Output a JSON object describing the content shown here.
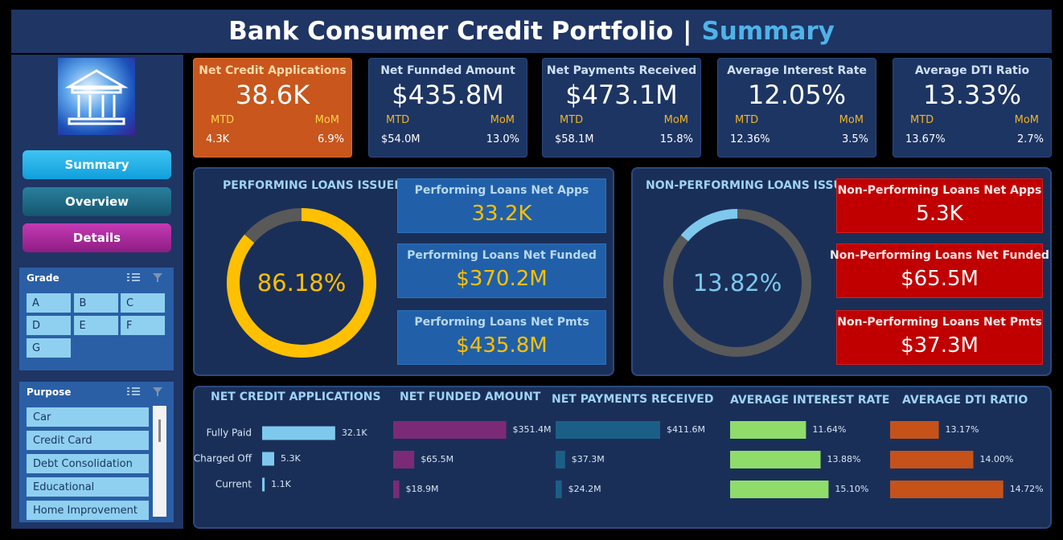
{
  "header": {
    "title": "Bank Consumer Credit Portfolio",
    "separator": "|",
    "subtitle": "Summary"
  },
  "nav": [
    "Summary",
    "Overview",
    "Details"
  ],
  "slicers": [
    {
      "title": "Grade",
      "items": [
        "A",
        "B",
        "C",
        "D",
        "E",
        "F",
        "G"
      ]
    },
    {
      "title": "Purpose",
      "items": [
        "Car",
        "Credit Card",
        "Debt Consolidation",
        "Educational",
        "Home Improvement"
      ]
    }
  ],
  "kpis": [
    {
      "title": "Net Credit Applications",
      "value": "38.6K",
      "mtd_label": "MTD",
      "mom_label": "MoM",
      "mtd": "4.3K",
      "mom": "6.9%"
    },
    {
      "title": "Net Funnded Amount",
      "value": "$435.8M",
      "mtd_label": "MTD",
      "mom_label": "MoM",
      "mtd": "$54.0M",
      "mom": "13.0%"
    },
    {
      "title": "Net Payments Received",
      "value": "$473.1M",
      "mtd_label": "MTD",
      "mom_label": "MoM",
      "mtd": "$58.1M",
      "mom": "15.8%"
    },
    {
      "title": "Average Interest Rate",
      "value": "12.05%",
      "mtd_label": "MTD",
      "mom_label": "MoM",
      "mtd": "12.36%",
      "mom": "3.5%"
    },
    {
      "title": "Average DTI Ratio",
      "value": "13.33%",
      "mtd_label": "MTD",
      "mom_label": "MoM",
      "mtd": "13.67%",
      "mom": "2.7%"
    }
  ],
  "panels": [
    {
      "title": "PERFORMING LOANS ISSUED",
      "cards": [
        {
          "title": "Performing Loans Net Apps",
          "value": "33.2K"
        },
        {
          "title": "Performing Loans Net Funded",
          "value": "$370.2M"
        },
        {
          "title": "Performing Loans Net Pmts",
          "value": "$435.8M"
        }
      ]
    },
    {
      "title": "NON-PERFORMING LOANS ISSUED",
      "cards": [
        {
          "title": "Non-Performing Loans Net Apps",
          "value": "5.3K"
        },
        {
          "title": "Non-Performing Loans Net Funded",
          "value": "$65.5M"
        },
        {
          "title": "Non-Performing Loans Net Pmts",
          "value": "$37.3M"
        }
      ]
    }
  ],
  "chart_data": [
    {
      "type": "donut",
      "values": [
        86.18
      ],
      "value_labels": [
        "86.18%"
      ],
      "color": "#ffc000",
      "track_color": "#595959",
      "ylim": [
        0,
        100
      ],
      "clockwise": true
    },
    {
      "type": "donut",
      "values": [
        13.82
      ],
      "value_labels": [
        "13.82%"
      ],
      "color": "#7ec8ee",
      "track_color": "#595959",
      "ylim": [
        0,
        100
      ],
      "clockwise": false
    },
    {
      "type": "bar",
      "title": "NET CREDIT APPLICATIONS",
      "categories": [
        "Fully Paid",
        "Charged Off",
        "Current"
      ],
      "values": [
        32.1,
        5.3,
        1.1
      ],
      "value_labels": [
        "32.1K",
        "5.3K",
        "1.1K"
      ],
      "color": "#7ec8ee",
      "xlim": [
        0,
        53
      ]
    },
    {
      "type": "bar",
      "title": "NET FUNDED AMOUNT",
      "categories": [
        null,
        null,
        null
      ],
      "values": [
        351.4,
        65.5,
        18.9
      ],
      "value_labels": [
        "$351.4M",
        "$65.5M",
        "$18.9M"
      ],
      "color": "#7b2a78",
      "xlim": [
        0,
        375
      ]
    },
    {
      "type": "bar",
      "title": "NET PAYMENTS RECEIVED",
      "categories": [
        null,
        null,
        null
      ],
      "values": [
        411.6,
        37.3,
        24.2
      ],
      "value_labels": [
        "$411.6M",
        "$37.3M",
        "$24.2M"
      ],
      "color": "#1b5f87",
      "xlim": [
        0,
        475
      ]
    },
    {
      "type": "bar",
      "title": "AVERAGE INTEREST RATE",
      "categories": [
        null,
        null,
        null
      ],
      "values": [
        11.64,
        13.88,
        15.1
      ],
      "value_labels": [
        "11.64%",
        "13.88%",
        "15.10%"
      ],
      "color": "#8fdc6a",
      "xlim": [
        0,
        18.5
      ]
    },
    {
      "type": "bar",
      "title": "AVERAGE DTI RATIO",
      "categories": [
        null,
        null,
        null
      ],
      "values": [
        13.17,
        14.0,
        14.72
      ],
      "value_labels": [
        "13.17%",
        "14.00%",
        "14.72%"
      ],
      "color": "#c6521a",
      "xlim": [
        12,
        14.9
      ]
    }
  ]
}
